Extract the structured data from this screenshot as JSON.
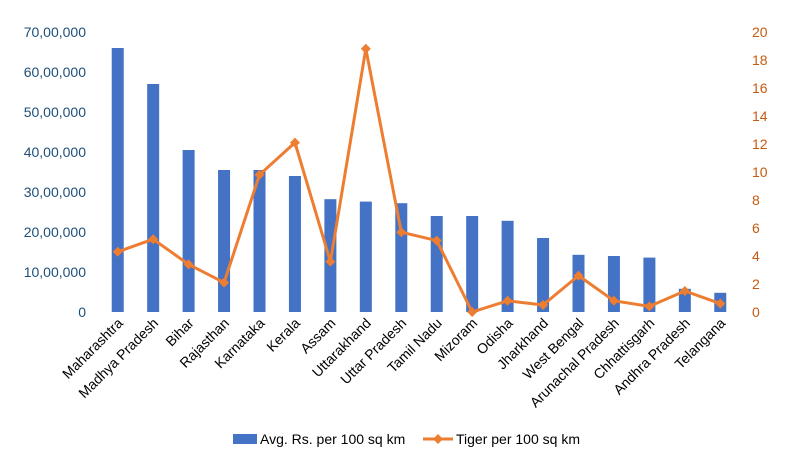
{
  "chart_data": {
    "type": "bar",
    "title": "",
    "categories": [
      "Maharashtra",
      "Madhya Pradesh",
      "Bihar",
      "Rajasthan",
      "Karnataka",
      "Kerala",
      "Assam",
      "Uttarakhand",
      "Uttar Pradesh",
      "Tamil Nadu",
      "Mizoram",
      "Odisha",
      "Jharkhand",
      "West Bengal",
      "Arunachal Pradesh",
      "Chhattisgarh",
      "Andhra Pradesh",
      "Telangana"
    ],
    "series": [
      {
        "name": "Avg. Rs. per 100 sq km",
        "type": "bar",
        "axis": "left",
        "color": "#4472C4",
        "values": [
          6600000,
          5700000,
          4050000,
          3550000,
          3550000,
          3400000,
          2820000,
          2760000,
          2720000,
          2400000,
          2400000,
          2280000,
          1850000,
          1430000,
          1400000,
          1360000,
          580000,
          480000
        ]
      },
      {
        "name": "Tiger per 100 sq km",
        "type": "line",
        "axis": "right",
        "color": "#ED7D31",
        "values": [
          4.3,
          5.2,
          3.4,
          2.1,
          9.8,
          12.1,
          3.6,
          18.8,
          5.7,
          5.1,
          0.0,
          0.8,
          0.5,
          2.6,
          0.8,
          0.4,
          1.5,
          0.6
        ]
      }
    ],
    "y_left": {
      "range": [
        0,
        7000000
      ],
      "tick_values": [
        0,
        1000000,
        2000000,
        3000000,
        4000000,
        5000000,
        6000000,
        7000000
      ],
      "tick_labels": [
        "0",
        "10,00,000",
        "20,00,000",
        "30,00,000",
        "40,00,000",
        "50,00,000",
        "60,00,000",
        "70,00,000"
      ],
      "color": "#1F4E79"
    },
    "y_right": {
      "range": [
        0,
        20
      ],
      "tick_values": [
        0,
        2,
        4,
        6,
        8,
        10,
        12,
        14,
        16,
        18,
        20
      ],
      "tick_labels": [
        "0",
        "2",
        "4",
        "6",
        "8",
        "10",
        "12",
        "14",
        "16",
        "18",
        "20"
      ],
      "color": "#C55A11"
    },
    "grid": false,
    "legend_position": "bottom"
  }
}
